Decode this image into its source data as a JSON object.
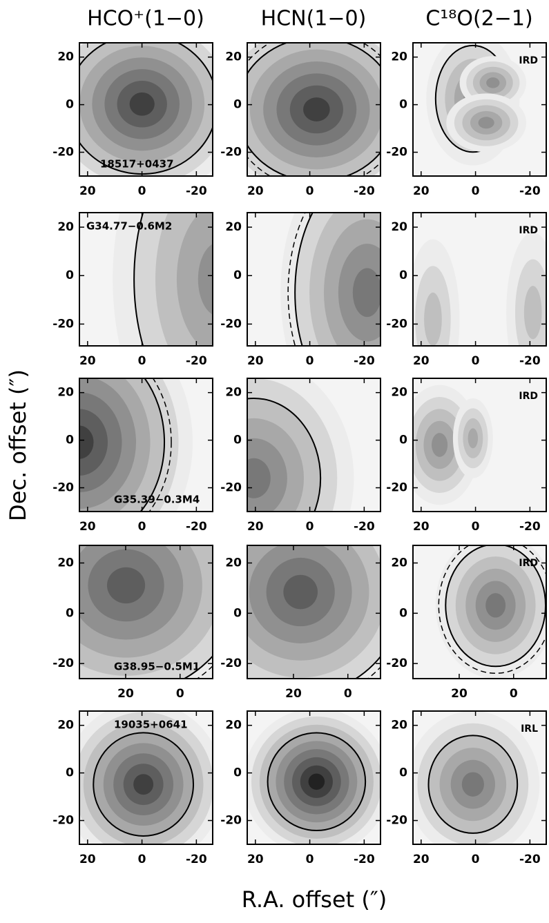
{
  "figure": {
    "column_titles": [
      "HCO⁺(1−0)",
      "HCN(1−0)",
      "C¹⁸O(2−1)"
    ],
    "y_axis_label": "Dec. offset (″)",
    "x_axis_label": "R.A. offset (″)",
    "rows": [
      {
        "source": "18517+0437",
        "tag": "IRD",
        "xlim": [
          23,
          -26
        ],
        "ylim": [
          -30,
          26
        ],
        "xticks": [
          20,
          0,
          -20
        ],
        "yticks": [
          20,
          0,
          -20
        ]
      },
      {
        "source": "G34.77−0.6M2",
        "tag": "IRD",
        "xlim": [
          23,
          -26
        ],
        "ylim": [
          -29,
          26
        ],
        "xticks": [
          20,
          0,
          -20
        ],
        "yticks": [
          20,
          0,
          -20
        ]
      },
      {
        "source": "G35.39−0.3M4",
        "tag": "IRD",
        "xlim": [
          23,
          -26
        ],
        "ylim": [
          -30,
          26
        ],
        "xticks": [
          20,
          0,
          -20
        ],
        "yticks": [
          20,
          0,
          -20
        ]
      },
      {
        "source": "G38.95−0.5M1",
        "tag": "IRD",
        "xlim": [
          37,
          -12
        ],
        "ylim": [
          -26,
          27
        ],
        "xticks": [
          20,
          0
        ],
        "yticks": [
          20,
          0,
          -20
        ]
      },
      {
        "source": "19035+0641",
        "tag": "IRL",
        "xlim": [
          23,
          -26
        ],
        "ylim": [
          -30,
          26
        ],
        "xticks": [
          20,
          0,
          -20
        ],
        "yticks": [
          20,
          0,
          -20
        ]
      }
    ]
  }
}
